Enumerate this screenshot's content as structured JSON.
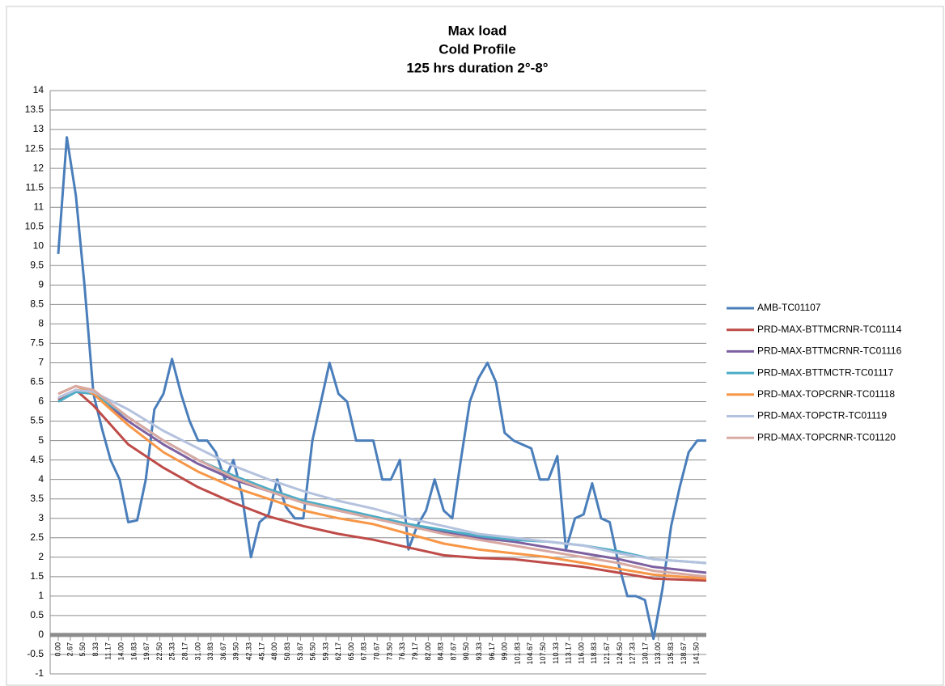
{
  "chart_data": {
    "type": "line",
    "title": [
      "Max load",
      "Cold Profile",
      "125 hrs duration 2°-8°"
    ],
    "xlim": [
      -1.8,
      143.6
    ],
    "xticks": [
      {
        "value": 0,
        "label": "0.00"
      },
      2.67,
      {
        "value": 5.5,
        "label": "5.50"
      },
      8.33,
      11.17,
      {
        "value": 14,
        "label": "14.00"
      },
      16.83,
      19.67,
      {
        "value": 22.5,
        "label": "22.50"
      },
      25.33,
      28.17,
      {
        "value": 31,
        "label": "31.00"
      },
      33.83,
      36.67,
      {
        "value": 39.5,
        "label": "39.50"
      },
      42.33,
      45.17,
      {
        "value": 48,
        "label": "48.00"
      },
      50.83,
      53.67,
      {
        "value": 56.5,
        "label": "56.50"
      },
      59.33,
      62.17,
      {
        "value": 65,
        "label": "65.00"
      },
      67.83,
      70.67,
      {
        "value": 73.5,
        "label": "73.50"
      },
      76.33,
      79.17,
      {
        "value": 82,
        "label": "82.00"
      },
      84.83,
      87.67,
      {
        "value": 90.5,
        "label": "90.50"
      },
      93.33,
      96.17,
      {
        "value": 99,
        "label": "99.00"
      },
      101.83,
      104.67,
      {
        "value": 107.5,
        "label": "107.50"
      },
      110.33,
      113.17,
      {
        "value": 116,
        "label": "116.00"
      },
      118.83,
      121.67,
      {
        "value": 124.5,
        "label": "124.50"
      },
      127.33,
      130.17,
      {
        "value": 133,
        "label": "133.00"
      },
      135.83,
      138.67,
      {
        "value": 141.5,
        "label": "141.50"
      }
    ],
    "ylim": [
      -1,
      14
    ],
    "yticks": [
      -1,
      -0.5,
      0,
      0.5,
      1,
      1.5,
      2,
      2.5,
      3,
      3.5,
      4,
      4.5,
      5,
      5.5,
      6,
      6.5,
      7,
      7.5,
      8,
      8.5,
      9,
      9.5,
      10,
      10.5,
      11,
      11.5,
      12,
      12.5,
      13,
      13.5,
      14
    ],
    "grid": true,
    "legend": "right",
    "series": [
      {
        "name": "AMB-TC01107",
        "color": "#4a7ebb",
        "x": [
          0,
          1.9,
          3.9,
          5.8,
          7.8,
          9.7,
          11.6,
          13.6,
          15.5,
          17.5,
          19.4,
          21.3,
          23.3,
          25.2,
          27.2,
          29.1,
          31,
          33,
          34.9,
          36.9,
          38.8,
          40.7,
          42.7,
          44.6,
          46.6,
          48.5,
          50.4,
          52.4,
          54.3,
          56.3,
          58.2,
          60.1,
          62.1,
          64,
          66,
          67.9,
          69.8,
          71.8,
          73.7,
          75.7,
          77.6,
          79.5,
          81.5,
          83.4,
          85.4,
          87.3,
          89.2,
          91.2,
          93.1,
          95.1,
          97,
          98.9,
          100.9,
          102.8,
          104.8,
          106.7,
          108.6,
          110.6,
          112.5,
          114.5,
          116.4,
          118.3,
          120.3,
          122.2,
          124.2,
          126.1,
          128,
          130,
          131.9,
          133.9,
          135.8,
          137.7,
          139.7,
          141.6,
          143.6
        ],
        "values": [
          9.8,
          12.8,
          11.3,
          9,
          6.2,
          5.3,
          4.5,
          4,
          2.9,
          2.95,
          4,
          5.8,
          6.2,
          7.1,
          6.2,
          5.5,
          5,
          5,
          4.7,
          4,
          4.5,
          3.6,
          2,
          2.9,
          3.1,
          4,
          3.3,
          3,
          3,
          5,
          6,
          7,
          6.2,
          6,
          5,
          5,
          5,
          4,
          4,
          4.5,
          2.2,
          2.8,
          3.2,
          4,
          3.2,
          3,
          4.5,
          6,
          6.6,
          7,
          6.5,
          5.2,
          5,
          4.9,
          4.8,
          4,
          4,
          4.6,
          2.2,
          3,
          3.1,
          3.9,
          3,
          2.9,
          1.8,
          1,
          1,
          0.9,
          -0.1,
          1.2,
          2.8,
          3.8,
          4.7,
          5,
          5
        ]
      },
      {
        "name": "PRD-MAX-BTTMCRNR-TC01114",
        "color": "#be4b48",
        "x": [
          0,
          3.9,
          7.8,
          15.5,
          23.3,
          31,
          38.8,
          46.6,
          54.3,
          62.1,
          69.8,
          77.6,
          85.4,
          93.1,
          100.9,
          108.6,
          116.4,
          124.2,
          131.9,
          143.6
        ],
        "values": [
          6.05,
          6.3,
          5.9,
          4.9,
          4.3,
          3.8,
          3.4,
          3.05,
          2.8,
          2.6,
          2.45,
          2.25,
          2.05,
          1.98,
          1.95,
          1.85,
          1.75,
          1.6,
          1.45,
          1.4
        ]
      },
      {
        "name": "PRD-MAX-BTTMCRNR-TC01116",
        "color": "#7d60a0",
        "x": [
          0,
          3.9,
          7.8,
          15.5,
          23.3,
          31,
          38.8,
          46.6,
          54.3,
          62.1,
          69.8,
          77.6,
          85.4,
          93.1,
          100.9,
          108.6,
          116.4,
          124.2,
          131.9,
          143.6
        ],
        "values": [
          6.1,
          6.3,
          6.2,
          5.5,
          4.9,
          4.4,
          4,
          3.7,
          3.4,
          3.2,
          3,
          2.8,
          2.65,
          2.5,
          2.4,
          2.25,
          2.1,
          1.95,
          1.75,
          1.6
        ]
      },
      {
        "name": "PRD-MAX-BTTMCTR-TC01117",
        "color": "#4bacc6",
        "x": [
          0,
          3.9,
          7.8,
          15.5,
          23.3,
          31,
          38.8,
          46.6,
          54.3,
          62.1,
          69.8,
          77.6,
          85.4,
          93.1,
          100.9,
          108.6,
          116.4,
          124.2,
          131.9,
          143.6
        ],
        "values": [
          6,
          6.25,
          6.2,
          5.6,
          5,
          4.5,
          4.1,
          3.75,
          3.45,
          3.25,
          3.05,
          2.85,
          2.7,
          2.55,
          2.45,
          2.4,
          2.3,
          2.15,
          1.95,
          1.85
        ]
      },
      {
        "name": "PRD-MAX-TOPCRNR-TC01118",
        "color": "#f79646",
        "x": [
          0,
          3.9,
          7.8,
          15.5,
          23.3,
          31,
          38.8,
          46.6,
          54.3,
          62.1,
          69.8,
          77.6,
          85.4,
          93.1,
          100.9,
          108.6,
          116.4,
          124.2,
          131.9,
          143.6
        ],
        "values": [
          6.2,
          6.4,
          6.2,
          5.4,
          4.7,
          4.2,
          3.8,
          3.5,
          3.2,
          3,
          2.85,
          2.6,
          2.35,
          2.2,
          2.1,
          2,
          1.85,
          1.7,
          1.55,
          1.45
        ]
      },
      {
        "name": "PRD-MAX-TOPCTR-TC01119",
        "color": "#b4c2de",
        "x": [
          0,
          3.9,
          7.8,
          15.5,
          23.3,
          31,
          38.8,
          46.6,
          54.3,
          62.1,
          69.8,
          77.6,
          85.4,
          93.1,
          100.9,
          108.6,
          116.4,
          124.2,
          131.9,
          143.6
        ],
        "values": [
          6.1,
          6.3,
          6.25,
          5.8,
          5.25,
          4.8,
          4.35,
          4,
          3.7,
          3.45,
          3.25,
          3,
          2.8,
          2.6,
          2.5,
          2.4,
          2.3,
          2.1,
          1.95,
          1.85
        ]
      },
      {
        "name": "PRD-MAX-TOPCRNR-TC01120",
        "color": "#d8a9a2",
        "x": [
          0,
          3.9,
          7.8,
          15.5,
          23.3,
          31,
          38.8,
          46.6,
          54.3,
          62.1,
          69.8,
          77.6,
          85.4,
          93.1,
          100.9,
          108.6,
          116.4,
          124.2,
          131.9,
          143.6
        ],
        "values": [
          6.2,
          6.4,
          6.3,
          5.6,
          5,
          4.5,
          4.05,
          3.7,
          3.4,
          3.2,
          3,
          2.8,
          2.6,
          2.45,
          2.3,
          2.15,
          2,
          1.85,
          1.65,
          1.5
        ]
      }
    ]
  }
}
